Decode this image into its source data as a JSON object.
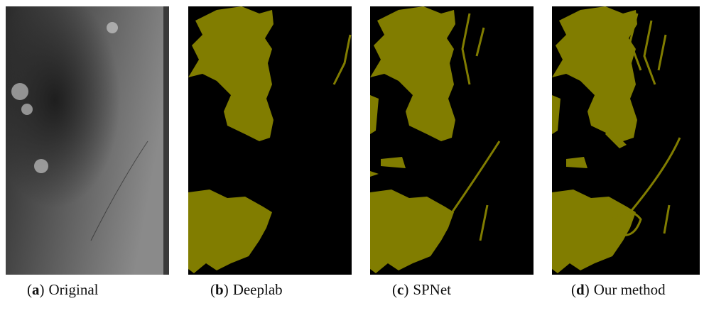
{
  "panels": [
    {
      "open": "(",
      "letter": "a",
      "close": ")",
      "label": "Original"
    },
    {
      "open": "(",
      "letter": "b",
      "close": ")",
      "label": "Deeplab"
    },
    {
      "open": "(",
      "letter": "c",
      "close": ")",
      "label": "SPNet"
    },
    {
      "open": "(",
      "letter": "d",
      "close": ")",
      "label": "Our method"
    }
  ]
}
